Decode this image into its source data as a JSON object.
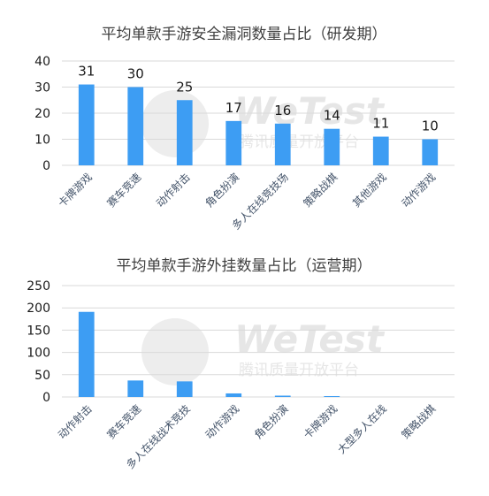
{
  "colors": {
    "bar": "#3d9df3",
    "grid": "#d9d9d9",
    "text": "#404040",
    "watermark": "#e6e6e6"
  },
  "watermark": {
    "brand": "WeTest",
    "tagline": "腾讯质量开放平台"
  },
  "chart_data": [
    {
      "type": "bar",
      "title": "平均单款手游安全漏洞数量占比（研发期）",
      "categories": [
        "卡牌游戏",
        "赛车竞速",
        "动作射击",
        "角色扮演",
        "多人在线竞技场",
        "策略战棋",
        "其他游戏",
        "动作游戏"
      ],
      "values": [
        31,
        30,
        25,
        17,
        16,
        14,
        11,
        10
      ],
      "data_labels": [
        "31",
        "30",
        "25",
        "17",
        "16",
        "14",
        "11",
        "10"
      ],
      "show_data_labels": true,
      "ylim": [
        0,
        40
      ],
      "yticks": [
        "0",
        "10",
        "20",
        "30",
        "40"
      ],
      "grid": true,
      "xlabel": "",
      "ylabel": ""
    },
    {
      "type": "bar",
      "title": "平均单款手游外挂数量占比（运营期）",
      "categories": [
        "动作射击",
        "赛车竞速",
        "多人在线战术竞技",
        "动作游戏",
        "角色扮演",
        "卡牌游戏",
        "大型多人在线",
        "策略战棋"
      ],
      "values": [
        191,
        37,
        35,
        8,
        3,
        2,
        0,
        0
      ],
      "show_data_labels": false,
      "ylim": [
        0,
        250
      ],
      "yticks": [
        "0",
        "50",
        "100",
        "150",
        "200",
        "250"
      ],
      "grid": true,
      "xlabel": "",
      "ylabel": ""
    }
  ]
}
